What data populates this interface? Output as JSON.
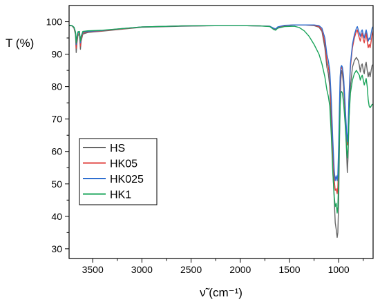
{
  "chart_data": {
    "type": "line",
    "title": "",
    "xlabel": "ν̃ (cm⁻¹)",
    "ylabel": "T (%)",
    "xlim": [
      3740,
      650
    ],
    "ylim": [
      27,
      105
    ],
    "x_reversed": true,
    "x_ticks": [
      3500,
      3000,
      2500,
      2000,
      1500,
      1000
    ],
    "y_ticks": [
      30,
      40,
      50,
      60,
      70,
      80,
      90,
      100
    ],
    "grid": false,
    "legend_position": "lower-left",
    "series": [
      {
        "name": "HS",
        "color": "#666666",
        "points": [
          [
            3740,
            98.8
          ],
          [
            3710,
            98.7
          ],
          [
            3690,
            98.0
          ],
          [
            3675,
            96.0
          ],
          [
            3668,
            90.5
          ],
          [
            3660,
            93.5
          ],
          [
            3650,
            95.8
          ],
          [
            3635,
            96.0
          ],
          [
            3625,
            91.5
          ],
          [
            3618,
            94.0
          ],
          [
            3600,
            96.2
          ],
          [
            3550,
            96.7
          ],
          [
            3400,
            97.1
          ],
          [
            3200,
            97.7
          ],
          [
            3000,
            98.3
          ],
          [
            2600,
            98.6
          ],
          [
            2200,
            98.8
          ],
          [
            2000,
            98.8
          ],
          [
            1800,
            98.7
          ],
          [
            1700,
            98.6
          ],
          [
            1660,
            97.8
          ],
          [
            1640,
            97.6
          ],
          [
            1620,
            98.2
          ],
          [
            1550,
            98.8
          ],
          [
            1450,
            99.0
          ],
          [
            1350,
            99.0
          ],
          [
            1250,
            98.8
          ],
          [
            1200,
            98.3
          ],
          [
            1170,
            97.0
          ],
          [
            1140,
            92.0
          ],
          [
            1120,
            86.0
          ],
          [
            1105,
            84.0
          ],
          [
            1090,
            80.0
          ],
          [
            1075,
            68.0
          ],
          [
            1060,
            55.0
          ],
          [
            1045,
            45.0
          ],
          [
            1035,
            38.0
          ],
          [
            1025,
            36.0
          ],
          [
            1015,
            33.5
          ],
          [
            1008,
            35.0
          ],
          [
            1000,
            45.0
          ],
          [
            992,
            62.0
          ],
          [
            985,
            75.0
          ],
          [
            978,
            82.0
          ],
          [
            970,
            85.0
          ],
          [
            962,
            84.0
          ],
          [
            950,
            80.0
          ],
          [
            935,
            72.0
          ],
          [
            920,
            60.0
          ],
          [
            912,
            53.5
          ],
          [
            905,
            58.0
          ],
          [
            895,
            70.0
          ],
          [
            880,
            80.0
          ],
          [
            860,
            86.0
          ],
          [
            840,
            88.0
          ],
          [
            820,
            89.0
          ],
          [
            800,
            88.0
          ],
          [
            790,
            86.5
          ],
          [
            780,
            84.5
          ],
          [
            770,
            86.5
          ],
          [
            760,
            87.0
          ],
          [
            750,
            85.0
          ],
          [
            740,
            84.0
          ],
          [
            730,
            86.5
          ],
          [
            720,
            87.5
          ],
          [
            710,
            85.0
          ],
          [
            700,
            83.0
          ],
          [
            690,
            84.5
          ],
          [
            680,
            83.0
          ],
          [
            670,
            85.0
          ],
          [
            660,
            86.5
          ],
          [
            650,
            86.8
          ]
        ]
      },
      {
        "name": "HK05",
        "color": "#e0403e",
        "points": [
          [
            3740,
            98.9
          ],
          [
            3710,
            98.8
          ],
          [
            3690,
            98.2
          ],
          [
            3675,
            96.4
          ],
          [
            3668,
            91.8
          ],
          [
            3660,
            94.2
          ],
          [
            3650,
            96.2
          ],
          [
            3635,
            96.4
          ],
          [
            3625,
            92.5
          ],
          [
            3618,
            94.5
          ],
          [
            3600,
            96.5
          ],
          [
            3550,
            96.9
          ],
          [
            3400,
            97.2
          ],
          [
            3200,
            97.8
          ],
          [
            3000,
            98.4
          ],
          [
            2600,
            98.7
          ],
          [
            2200,
            98.8
          ],
          [
            2000,
            98.8
          ],
          [
            1800,
            98.7
          ],
          [
            1700,
            98.6
          ],
          [
            1660,
            97.9
          ],
          [
            1640,
            97.7
          ],
          [
            1620,
            98.3
          ],
          [
            1550,
            98.8
          ],
          [
            1450,
            99.0
          ],
          [
            1350,
            99.0
          ],
          [
            1250,
            98.9
          ],
          [
            1200,
            98.5
          ],
          [
            1170,
            97.5
          ],
          [
            1140,
            93.5
          ],
          [
            1120,
            88.0
          ],
          [
            1105,
            86.0
          ],
          [
            1090,
            83.0
          ],
          [
            1075,
            73.0
          ],
          [
            1060,
            61.0
          ],
          [
            1045,
            51.0
          ],
          [
            1035,
            48.0
          ],
          [
            1025,
            48.5
          ],
          [
            1015,
            47.0
          ],
          [
            1008,
            49.0
          ],
          [
            1000,
            58.0
          ],
          [
            992,
            70.0
          ],
          [
            985,
            80.0
          ],
          [
            978,
            85.0
          ],
          [
            970,
            86.0
          ],
          [
            962,
            85.5
          ],
          [
            950,
            82.0
          ],
          [
            935,
            74.0
          ],
          [
            920,
            65.0
          ],
          [
            912,
            62.0
          ],
          [
            905,
            65.0
          ],
          [
            895,
            76.0
          ],
          [
            880,
            86.0
          ],
          [
            860,
            92.0
          ],
          [
            840,
            95.0
          ],
          [
            820,
            97.0
          ],
          [
            810,
            97.5
          ],
          [
            800,
            96.0
          ],
          [
            790,
            95.0
          ],
          [
            780,
            94.0
          ],
          [
            770,
            95.5
          ],
          [
            760,
            96.5
          ],
          [
            750,
            94.5
          ],
          [
            740,
            93.5
          ],
          [
            730,
            95.0
          ],
          [
            720,
            96.5
          ],
          [
            710,
            94.0
          ],
          [
            700,
            92.0
          ],
          [
            690,
            93.0
          ],
          [
            680,
            92.0
          ],
          [
            670,
            94.0
          ],
          [
            660,
            96.0
          ],
          [
            650,
            97.0
          ]
        ]
      },
      {
        "name": "HK025",
        "color": "#2f6fd0",
        "points": [
          [
            3740,
            98.9
          ],
          [
            3710,
            98.8
          ],
          [
            3690,
            98.3
          ],
          [
            3675,
            96.8
          ],
          [
            3668,
            93.0
          ],
          [
            3660,
            95.0
          ],
          [
            3650,
            96.6
          ],
          [
            3635,
            96.8
          ],
          [
            3625,
            93.5
          ],
          [
            3618,
            95.2
          ],
          [
            3600,
            96.8
          ],
          [
            3550,
            97.0
          ],
          [
            3400,
            97.3
          ],
          [
            3200,
            97.9
          ],
          [
            3000,
            98.4
          ],
          [
            2600,
            98.7
          ],
          [
            2200,
            98.8
          ],
          [
            2000,
            98.8
          ],
          [
            1800,
            98.7
          ],
          [
            1700,
            98.6
          ],
          [
            1660,
            98.0
          ],
          [
            1640,
            97.8
          ],
          [
            1620,
            98.4
          ],
          [
            1550,
            98.9
          ],
          [
            1450,
            99.0
          ],
          [
            1350,
            99.0
          ],
          [
            1250,
            99.0
          ],
          [
            1200,
            98.8
          ],
          [
            1170,
            98.0
          ],
          [
            1140,
            95.0
          ],
          [
            1120,
            90.0
          ],
          [
            1105,
            88.0
          ],
          [
            1090,
            85.0
          ],
          [
            1075,
            76.0
          ],
          [
            1060,
            64.0
          ],
          [
            1045,
            54.0
          ],
          [
            1035,
            51.0
          ],
          [
            1025,
            52.5
          ],
          [
            1015,
            51.0
          ],
          [
            1008,
            53.0
          ],
          [
            1000,
            62.0
          ],
          [
            992,
            74.0
          ],
          [
            985,
            83.0
          ],
          [
            978,
            86.0
          ],
          [
            970,
            86.5
          ],
          [
            962,
            86.0
          ],
          [
            950,
            83.0
          ],
          [
            935,
            75.0
          ],
          [
            920,
            66.0
          ],
          [
            912,
            63.0
          ],
          [
            905,
            66.0
          ],
          [
            895,
            77.0
          ],
          [
            880,
            87.0
          ],
          [
            860,
            93.0
          ],
          [
            840,
            96.0
          ],
          [
            820,
            98.0
          ],
          [
            810,
            98.5
          ],
          [
            800,
            97.5
          ],
          [
            790,
            96.5
          ],
          [
            780,
            95.5
          ],
          [
            770,
            97.0
          ],
          [
            760,
            97.5
          ],
          [
            750,
            96.0
          ],
          [
            740,
            95.0
          ],
          [
            730,
            96.5
          ],
          [
            720,
            97.5
          ],
          [
            710,
            96.0
          ],
          [
            700,
            94.0
          ],
          [
            690,
            95.0
          ],
          [
            680,
            94.5
          ],
          [
            670,
            96.5
          ],
          [
            660,
            98.0
          ],
          [
            650,
            98.5
          ]
        ]
      },
      {
        "name": "HK1",
        "color": "#1aa45a",
        "points": [
          [
            3740,
            98.9
          ],
          [
            3710,
            98.8
          ],
          [
            3690,
            98.3
          ],
          [
            3675,
            96.8
          ],
          [
            3668,
            93.5
          ],
          [
            3660,
            95.5
          ],
          [
            3650,
            96.9
          ],
          [
            3635,
            97.0
          ],
          [
            3625,
            94.0
          ],
          [
            3618,
            95.5
          ],
          [
            3600,
            97.0
          ],
          [
            3550,
            97.2
          ],
          [
            3400,
            97.4
          ],
          [
            3200,
            97.9
          ],
          [
            3000,
            98.4
          ],
          [
            2600,
            98.7
          ],
          [
            2200,
            98.8
          ],
          [
            2000,
            98.8
          ],
          [
            1800,
            98.7
          ],
          [
            1700,
            98.5
          ],
          [
            1660,
            97.6
          ],
          [
            1640,
            97.4
          ],
          [
            1620,
            98.0
          ],
          [
            1550,
            98.5
          ],
          [
            1450,
            98.6
          ],
          [
            1400,
            98.2
          ],
          [
            1350,
            97.2
          ],
          [
            1300,
            95.5
          ],
          [
            1250,
            93.0
          ],
          [
            1200,
            90.0
          ],
          [
            1170,
            87.0
          ],
          [
            1140,
            83.0
          ],
          [
            1120,
            79.0
          ],
          [
            1105,
            77.0
          ],
          [
            1090,
            74.0
          ],
          [
            1075,
            65.0
          ],
          [
            1060,
            54.0
          ],
          [
            1045,
            46.0
          ],
          [
            1035,
            43.0
          ],
          [
            1025,
            44.0
          ],
          [
            1015,
            41.0
          ],
          [
            1008,
            43.0
          ],
          [
            1000,
            52.0
          ],
          [
            992,
            65.0
          ],
          [
            985,
            74.0
          ],
          [
            978,
            78.0
          ],
          [
            970,
            78.5
          ],
          [
            962,
            78.0
          ],
          [
            950,
            75.0
          ],
          [
            935,
            69.0
          ],
          [
            920,
            61.0
          ],
          [
            912,
            58.0
          ],
          [
            905,
            61.0
          ],
          [
            895,
            70.0
          ],
          [
            880,
            78.0
          ],
          [
            860,
            82.0
          ],
          [
            840,
            84.0
          ],
          [
            820,
            85.0
          ],
          [
            800,
            84.0
          ],
          [
            790,
            83.5
          ],
          [
            780,
            82.0
          ],
          [
            770,
            83.0
          ],
          [
            760,
            83.5
          ],
          [
            750,
            82.0
          ],
          [
            740,
            80.5
          ],
          [
            730,
            81.5
          ],
          [
            720,
            82.5
          ],
          [
            710,
            80.0
          ],
          [
            700,
            76.0
          ],
          [
            690,
            74.0
          ],
          [
            680,
            73.5
          ],
          [
            670,
            74.0
          ],
          [
            660,
            74.5
          ],
          [
            650,
            74.5
          ]
        ]
      }
    ]
  }
}
